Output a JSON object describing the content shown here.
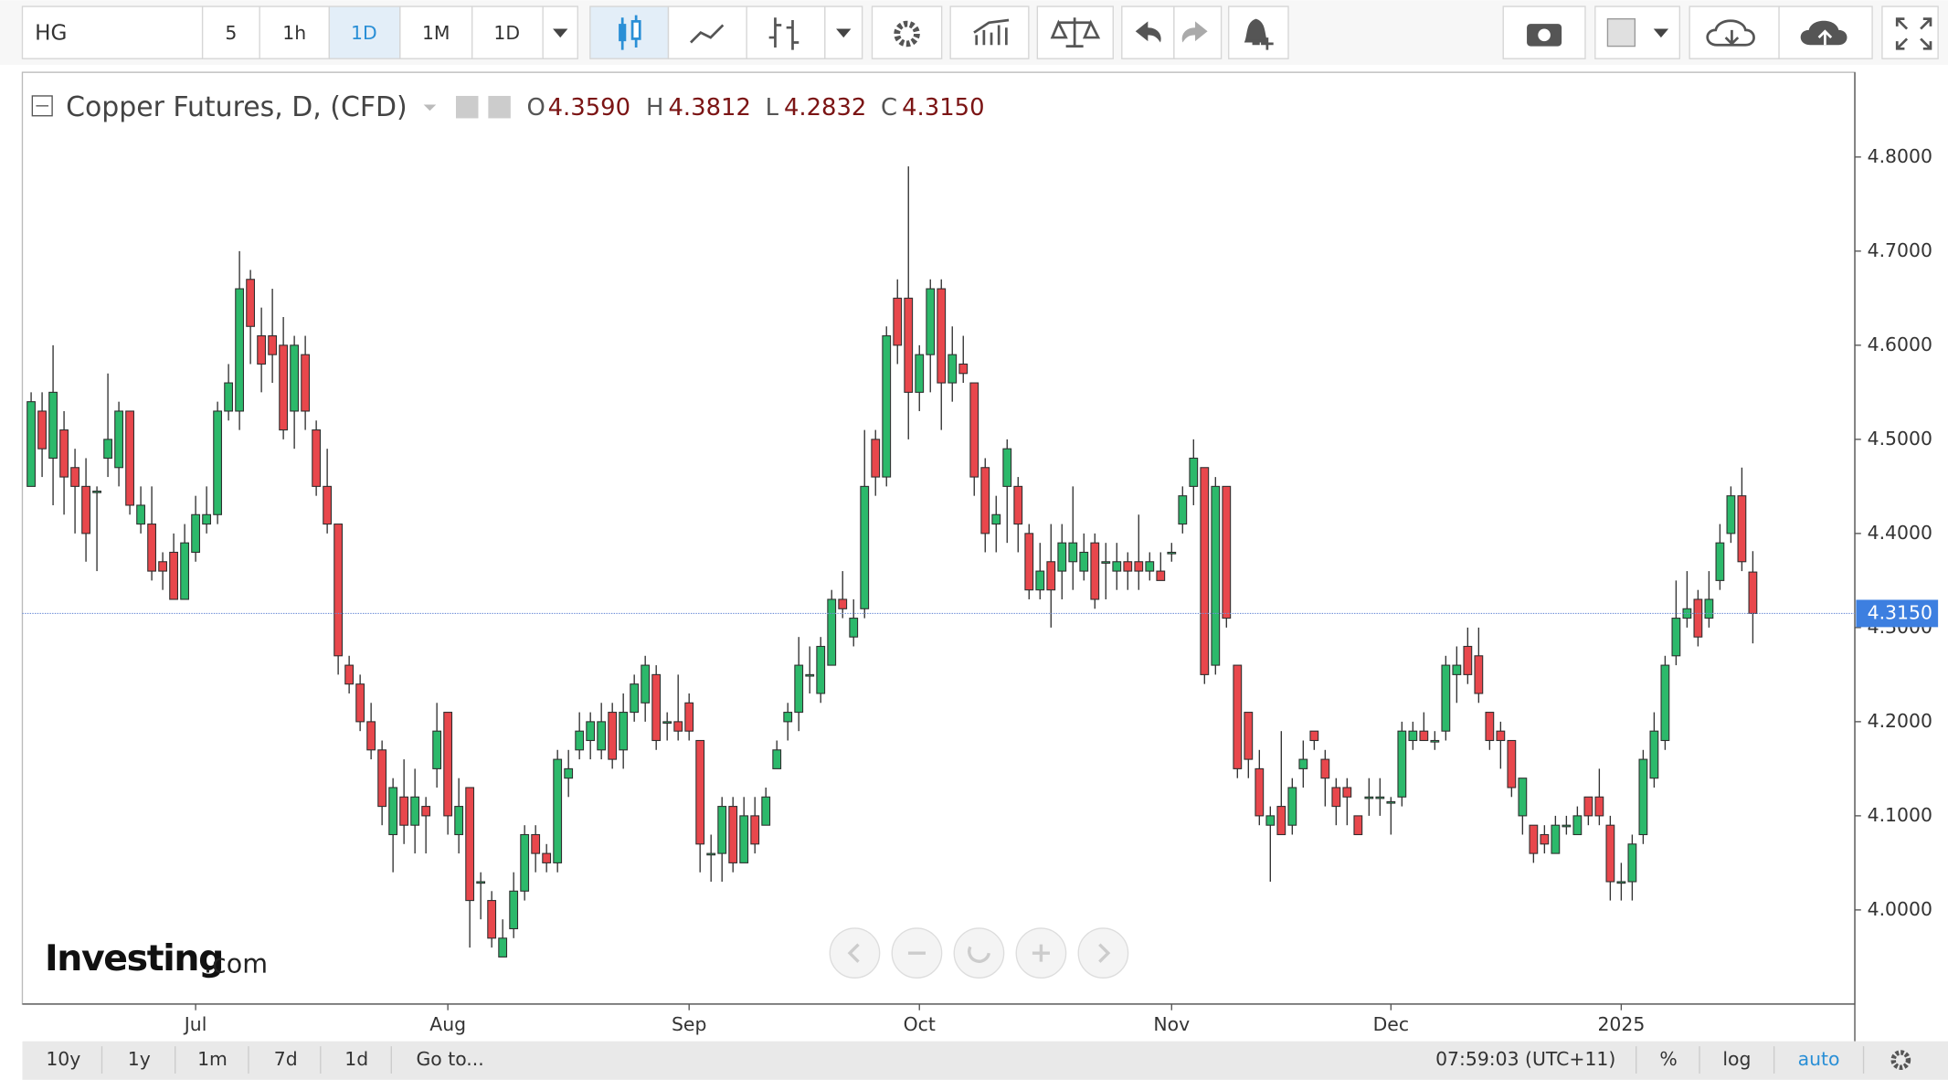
{
  "toolbar": {
    "symbol": "HG",
    "intervals": [
      "5",
      "1h",
      "1D",
      "1M",
      "1D"
    ]
  },
  "chart_data": {
    "type": "candlestick",
    "title": "Copper Futures, D, (CFD)",
    "ohlc_header": [
      {
        "key": "O",
        "value": "4.3590"
      },
      {
        "key": "H",
        "value": "4.3812"
      },
      {
        "key": "L",
        "value": "4.2832"
      },
      {
        "key": "C",
        "value": "4.3150"
      }
    ],
    "open": [
      4.45,
      4.53,
      4.48,
      4.51,
      4.47,
      4.45,
      4.445,
      4.48,
      4.47,
      4.53,
      4.41,
      4.41,
      4.37,
      4.38,
      4.33,
      4.38,
      4.41,
      4.42,
      4.53,
      4.53,
      4.67,
      4.61,
      4.61,
      4.6,
      4.53,
      4.59,
      4.51,
      4.45,
      4.41,
      4.26,
      4.24,
      4.2,
      4.17,
      4.08,
      4.12,
      4.09,
      4.11,
      4.15,
      4.21,
      4.08,
      4.13,
      4.03,
      4.01,
      3.95,
      3.98,
      4.02,
      4.08,
      4.06,
      4.05,
      4.14,
      4.17,
      4.18,
      4.17,
      4.21,
      4.17,
      4.21,
      4.22,
      4.25,
      4.2,
      4.2,
      4.22,
      4.18,
      4.06,
      4.06,
      4.11,
      4.05,
      4.1,
      4.09,
      4.15,
      4.2,
      4.21,
      4.25,
      4.23,
      4.26,
      4.33,
      4.29,
      4.32,
      4.5,
      4.46,
      4.65,
      4.65,
      4.55,
      4.59,
      4.66,
      4.56,
      4.58,
      4.56,
      4.47,
      4.41,
      4.45,
      4.45,
      4.4,
      4.34,
      4.37,
      4.36,
      4.37,
      4.36,
      4.39,
      4.37,
      4.36,
      4.37,
      4.37,
      4.36,
      4.36,
      4.38,
      4.41,
      4.45,
      4.47,
      4.26,
      4.45,
      4.26,
      4.21,
      4.15,
      4.09,
      4.11,
      4.09,
      4.15,
      4.19,
      4.16,
      4.13,
      4.13,
      4.1,
      4.12,
      4.12,
      4.115,
      4.12,
      4.18,
      4.19,
      4.18,
      4.19,
      4.25,
      4.28,
      4.27,
      4.21,
      4.19,
      4.18,
      4.1,
      4.09,
      4.08,
      4.06,
      4.09,
      4.08,
      4.12,
      4.12,
      4.09,
      4.03,
      4.03,
      4.08,
      4.14,
      4.18,
      4.27,
      4.31,
      4.33,
      4.31,
      4.35,
      4.4,
      4.44,
      4.359
    ],
    "high": [
      4.55,
      4.55,
      4.6,
      4.53,
      4.49,
      4.48,
      4.45,
      4.57,
      4.54,
      4.53,
      4.45,
      4.45,
      4.38,
      4.4,
      4.41,
      4.44,
      4.45,
      4.54,
      4.58,
      4.7,
      4.68,
      4.64,
      4.66,
      4.63,
      4.61,
      4.61,
      4.52,
      4.49,
      4.41,
      4.27,
      4.25,
      4.22,
      4.18,
      4.14,
      4.16,
      4.15,
      4.12,
      4.22,
      4.21,
      4.14,
      4.13,
      4.04,
      4.02,
      3.99,
      4.04,
      4.09,
      4.09,
      4.07,
      4.17,
      4.17,
      4.21,
      4.21,
      4.22,
      4.22,
      4.23,
      4.25,
      4.27,
      4.26,
      4.21,
      4.25,
      4.23,
      4.18,
      4.08,
      4.12,
      4.12,
      4.12,
      4.12,
      4.13,
      4.18,
      4.22,
      4.29,
      4.28,
      4.29,
      4.34,
      4.36,
      4.33,
      4.51,
      4.51,
      4.62,
      4.67,
      4.79,
      4.6,
      4.67,
      4.67,
      4.62,
      4.61,
      4.56,
      4.48,
      4.44,
      4.5,
      4.46,
      4.41,
      4.39,
      4.41,
      4.41,
      4.45,
      4.4,
      4.4,
      4.39,
      4.39,
      4.38,
      4.42,
      4.38,
      4.38,
      4.39,
      4.45,
      4.5,
      4.47,
      4.46,
      4.45,
      4.26,
      4.21,
      4.17,
      4.11,
      4.19,
      4.14,
      4.18,
      4.19,
      4.17,
      4.14,
      4.14,
      4.1,
      4.14,
      4.14,
      4.12,
      4.2,
      4.2,
      4.21,
      4.19,
      4.27,
      4.28,
      4.3,
      4.3,
      4.21,
      4.2,
      4.18,
      4.14,
      4.09,
      4.09,
      4.1,
      4.1,
      4.11,
      4.12,
      4.15,
      4.1,
      4.05,
      4.08,
      4.17,
      4.21,
      4.27,
      4.35,
      4.36,
      4.34,
      4.36,
      4.41,
      4.45,
      4.47,
      4.3812
    ],
    "low": [
      4.45,
      4.46,
      4.43,
      4.42,
      4.4,
      4.37,
      4.36,
      4.46,
      4.45,
      4.42,
      4.4,
      4.35,
      4.34,
      4.33,
      4.33,
      4.37,
      4.4,
      4.41,
      4.52,
      4.51,
      4.58,
      4.55,
      4.56,
      4.5,
      4.49,
      4.51,
      4.44,
      4.4,
      4.25,
      4.23,
      4.19,
      4.16,
      4.09,
      4.04,
      4.07,
      4.06,
      4.06,
      4.13,
      4.08,
      4.06,
      3.96,
      3.99,
      3.96,
      3.95,
      3.97,
      4.01,
      4.04,
      4.04,
      4.04,
      4.12,
      4.16,
      4.16,
      4.16,
      4.15,
      4.15,
      4.2,
      4.2,
      4.17,
      4.18,
      4.18,
      4.18,
      4.04,
      4.03,
      4.03,
      4.04,
      4.05,
      4.06,
      4.09,
      4.15,
      4.18,
      4.19,
      4.23,
      4.22,
      4.26,
      4.31,
      4.28,
      4.31,
      4.44,
      4.45,
      4.58,
      4.5,
      4.53,
      4.55,
      4.51,
      4.54,
      4.56,
      4.44,
      4.38,
      4.38,
      4.39,
      4.38,
      4.33,
      4.33,
      4.3,
      4.33,
      4.34,
      4.35,
      4.32,
      4.33,
      4.34,
      4.34,
      4.34,
      4.35,
      4.35,
      4.37,
      4.4,
      4.43,
      4.24,
      4.25,
      4.3,
      4.14,
      4.14,
      4.09,
      4.03,
      4.08,
      4.08,
      4.13,
      4.17,
      4.11,
      4.09,
      4.09,
      4.08,
      4.1,
      4.1,
      4.08,
      4.11,
      4.17,
      4.18,
      4.17,
      4.18,
      4.22,
      4.24,
      4.22,
      4.17,
      4.15,
      4.12,
      4.08,
      4.05,
      4.06,
      4.06,
      4.08,
      4.08,
      4.09,
      4.09,
      4.01,
      4.01,
      4.01,
      4.07,
      4.13,
      4.17,
      4.26,
      4.3,
      4.28,
      4.3,
      4.34,
      4.39,
      4.36,
      4.2832
    ],
    "close": [
      4.54,
      4.49,
      4.55,
      4.46,
      4.45,
      4.4,
      4.445,
      4.5,
      4.53,
      4.43,
      4.43,
      4.36,
      4.36,
      4.33,
      4.39,
      4.42,
      4.42,
      4.53,
      4.56,
      4.66,
      4.62,
      4.58,
      4.59,
      4.51,
      4.6,
      4.53,
      4.45,
      4.41,
      4.27,
      4.24,
      4.2,
      4.17,
      4.11,
      4.13,
      4.09,
      4.12,
      4.1,
      4.19,
      4.1,
      4.11,
      4.01,
      4.03,
      3.97,
      3.97,
      4.02,
      4.08,
      4.06,
      4.05,
      4.16,
      4.15,
      4.19,
      4.2,
      4.2,
      4.16,
      4.21,
      4.24,
      4.26,
      4.18,
      4.2,
      4.19,
      4.19,
      4.07,
      4.06,
      4.11,
      4.05,
      4.1,
      4.07,
      4.12,
      4.17,
      4.21,
      4.26,
      4.25,
      4.28,
      4.33,
      4.32,
      4.31,
      4.45,
      4.46,
      4.61,
      4.6,
      4.55,
      4.59,
      4.66,
      4.56,
      4.59,
      4.57,
      4.46,
      4.4,
      4.42,
      4.49,
      4.41,
      4.34,
      4.36,
      4.34,
      4.39,
      4.39,
      4.38,
      4.33,
      4.37,
      4.37,
      4.36,
      4.36,
      4.37,
      4.35,
      4.38,
      4.44,
      4.48,
      4.25,
      4.45,
      4.31,
      4.15,
      4.16,
      4.1,
      4.1,
      4.08,
      4.13,
      4.16,
      4.18,
      4.14,
      4.11,
      4.12,
      4.08,
      4.12,
      4.12,
      4.115,
      4.19,
      4.19,
      4.18,
      4.18,
      4.26,
      4.26,
      4.25,
      4.23,
      4.18,
      4.18,
      4.13,
      4.14,
      4.06,
      4.07,
      4.09,
      4.09,
      4.1,
      4.1,
      4.1,
      4.03,
      4.03,
      4.07,
      4.16,
      4.19,
      4.26,
      4.31,
      4.32,
      4.29,
      4.33,
      4.39,
      4.44,
      4.37,
      4.315
    ],
    "up_color": "#2cb96b",
    "down_color": "#e8474c",
    "xlim": [
      -0.8,
      166.3
    ],
    "xticks": [
      {
        "value": 15,
        "label": "Jul"
      },
      {
        "value": 38,
        "label": "Aug"
      },
      {
        "value": 60,
        "label": "Sep"
      },
      {
        "value": 81,
        "label": "Oct"
      },
      {
        "value": 104,
        "label": "Nov"
      },
      {
        "value": 124,
        "label": "Dec"
      },
      {
        "value": 145,
        "label": "2025"
      }
    ],
    "ylim": [
      3.9,
      4.89
    ],
    "yticks": [
      {
        "value": 4.0,
        "label": "4.0000"
      },
      {
        "value": 4.1,
        "label": "4.1000"
      },
      {
        "value": 4.2,
        "label": "4.2000"
      },
      {
        "value": 4.3,
        "label": "4.3000"
      },
      {
        "value": 4.4,
        "label": "4.4000"
      },
      {
        "value": 4.5,
        "label": "4.5000"
      },
      {
        "value": 4.6,
        "label": "4.6000"
      },
      {
        "value": 4.7,
        "label": "4.7000"
      },
      {
        "value": 4.8,
        "label": "4.8000"
      }
    ],
    "last_price": {
      "value": 4.315,
      "label": "4.3150"
    }
  },
  "brand": {
    "name": "Investing",
    "suffix": ".com"
  },
  "bottom_bar": {
    "ranges": [
      "10y",
      "1y",
      "1m",
      "7d",
      "1d"
    ],
    "goto": "Go to...",
    "clock": "07:59:03 (UTC+11)",
    "options": [
      "%",
      "log",
      "auto"
    ]
  }
}
